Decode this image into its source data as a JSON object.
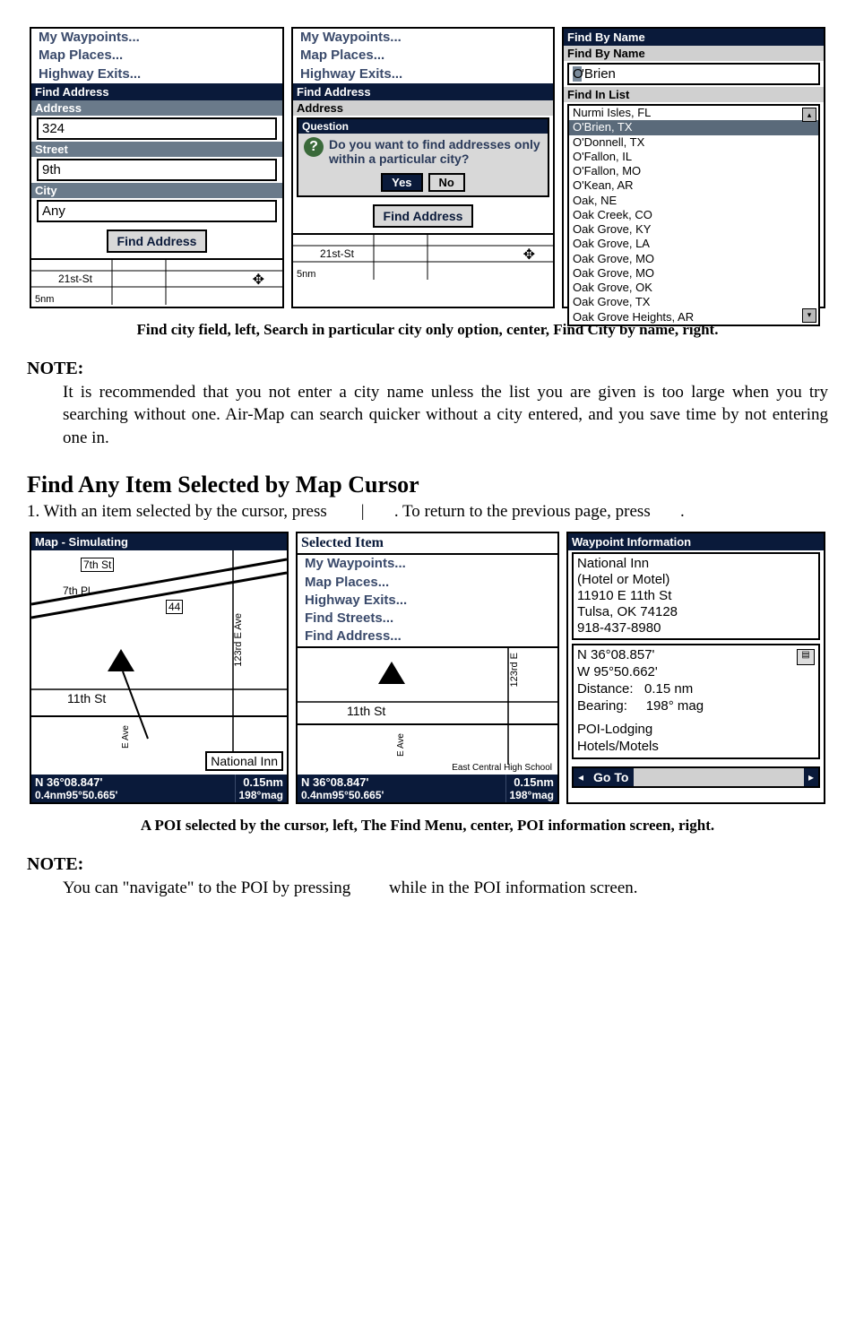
{
  "fig1": {
    "panel_a": {
      "menu": [
        "My Waypoints...",
        "Map Places...",
        "Highway Exits..."
      ],
      "title": "Find Address",
      "labels": {
        "address": "Address",
        "street": "Street",
        "city": "City"
      },
      "values": {
        "address": "324",
        "street": "9th",
        "city": "Any"
      },
      "button": "Find Address",
      "map_label": "21st-St",
      "map_scale": "5nm",
      "title_bg": "#0a1a3a",
      "label_bg": "#6a7a8a"
    },
    "panel_b": {
      "menu": [
        "My Waypoints...",
        "Map Places...",
        "Highway Exits..."
      ],
      "title": "Find Address",
      "address_label": "Address",
      "dialog_title": "Question",
      "dialog_text": "Do you want to find addresses only within a particular city?",
      "yes": "Yes",
      "no": "No",
      "button": "Find Address",
      "map_label": "21st-St",
      "map_scale": "5nm"
    },
    "panel_c": {
      "title1": "Find By Name",
      "title2": "Find By Name",
      "input": "'Brien",
      "input_caret": "O",
      "title3": "Find In List",
      "items": [
        "Nurmi Isles, FL",
        "O'Brien, TX",
        "O'Donnell, TX",
        "O'Fallon, IL",
        "O'Fallon, MO",
        "O'Kean, AR",
        "Oak, NE",
        "Oak Creek, CO",
        "Oak Grove, KY",
        "Oak Grove, LA",
        "Oak Grove, MO",
        "Oak Grove, MO",
        "Oak Grove, OK",
        "Oak Grove, TX",
        "Oak Grove Heights, AR"
      ],
      "selected_index": 1
    },
    "caption": "Find city field, left, Search in particular city only option, center, Find City by name, right."
  },
  "note1": {
    "label": "NOTE:",
    "body": "It is recommended that you not enter a city name unless the list you are given is too large when you try searching without one. Air-Map can search quicker without a city entered, and you save time by not entering one in."
  },
  "section2": {
    "heading": "Find Any Item Selected by Map Cursor",
    "body_line1_a": "1. With an item selected by the cursor, press ",
    "body_line1_sep": "|",
    "body_line1_b": ". To return to the previous page, press ",
    "body_line1_end": "."
  },
  "fig2": {
    "panel_a": {
      "title": "Map - Simulating",
      "labels": {
        "st7": "7th St",
        "pl7": "7th Pl",
        "ave": "123rd E Ave",
        "st11": "11th St",
        "eave": "E Ave",
        "poi": "National Inn",
        "shield": "44"
      },
      "coord": {
        "lat_n": "N    36°08.847'",
        "lat_b": "0.4nm95°50.665'",
        "dist": "0.15nm",
        "bearing": "198°mag"
      }
    },
    "panel_b": {
      "title": "Selected Item",
      "menu": [
        "My Waypoints...",
        "Map Places...",
        "Highway Exits...",
        "Find Streets...",
        "Find Address..."
      ],
      "labels": {
        "st11": "11th St",
        "ave": "123rd E",
        "eave": "E Ave",
        "school": "East Central High School"
      },
      "coord": {
        "lat_n": "N    36°08.847'",
        "lat_b": "0.4nm95°50.665'",
        "dist": "0.15nm",
        "bearing": "198°mag"
      }
    },
    "panel_c": {
      "title": "Waypoint Information",
      "lines": [
        "National Inn",
        "(Hotel or Motel)",
        "11910 E 11th St",
        "Tulsa, OK 74128",
        "918-437-8980"
      ],
      "coords": [
        "N    36°08.857'",
        "W   95°50.662'"
      ],
      "dist_label": "Distance:",
      "dist_val": "0.15 nm",
      "brg_label": "Bearing:",
      "brg_val": "198° mag",
      "cat1": "POI-Lodging",
      "cat2": "Hotels/Motels",
      "goto": "Go To"
    },
    "caption": "A POI selected by the cursor, left, The Find Menu, center, POI information screen, right."
  },
  "note2": {
    "label": "NOTE:",
    "body_a": "You can \"navigate\" to the POI by pressing ",
    "body_b": " while in the POI information screen."
  }
}
